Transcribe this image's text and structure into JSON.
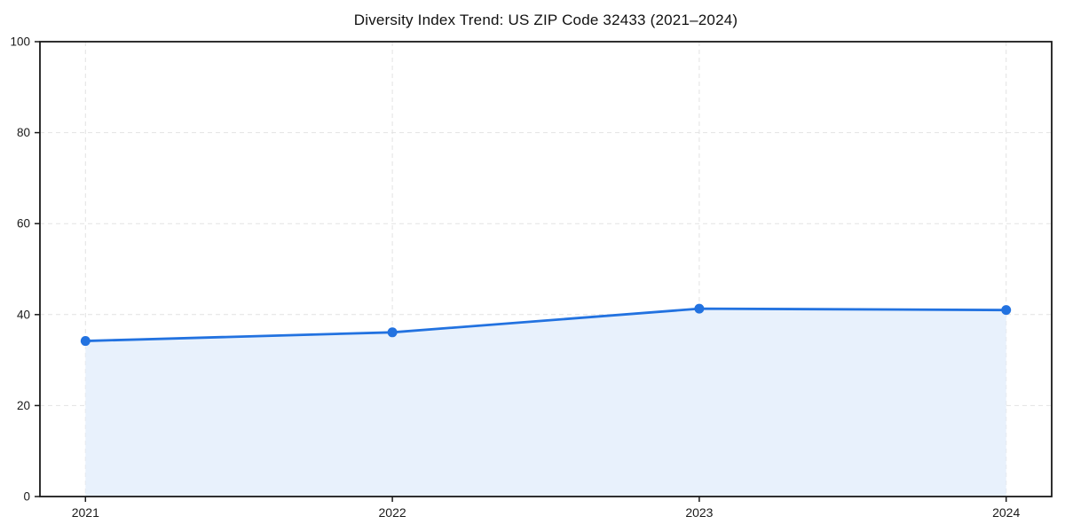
{
  "chart_data": {
    "type": "line",
    "title": "Diversity Index Trend: US ZIP Code 32433 (2021–2024)",
    "x": [
      "2021",
      "2022",
      "2023",
      "2024"
    ],
    "values": [
      34.2,
      36.1,
      41.3,
      41.0
    ],
    "xlabel": "",
    "ylabel": "",
    "ylim": [
      0,
      100
    ],
    "yticks": [
      0,
      20,
      40,
      60,
      80,
      100
    ],
    "grid": "dashed-both-axes",
    "legend": "none",
    "area_fill_to_zero": true,
    "colors": {
      "line": "#2272e0",
      "marker": "#2272e0",
      "area": "#e8f1fc",
      "grid": "#e2e2e2",
      "spine": "#1a1a1a",
      "tick_text": "#1a1a1a",
      "background": "#ffffff"
    }
  }
}
